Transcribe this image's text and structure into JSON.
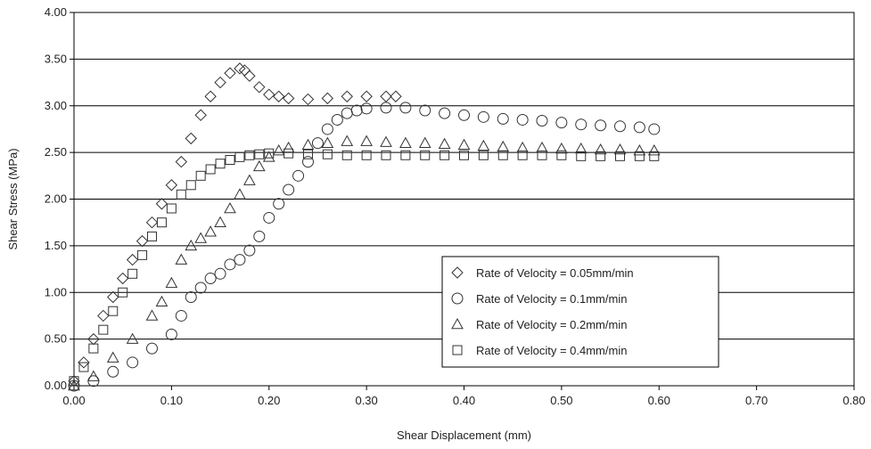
{
  "chart_data": {
    "type": "scatter",
    "title": "",
    "xlabel": "Shear Displacement (mm)",
    "ylabel": "Shear Stress (MPa)",
    "xlim": [
      0.0,
      0.8
    ],
    "ylim": [
      0.0,
      4.0
    ],
    "x_ticks": [
      "0.00",
      "0.10",
      "0.20",
      "0.30",
      "0.40",
      "0.50",
      "0.60",
      "0.70",
      "0.80"
    ],
    "y_ticks": [
      "0.00",
      "0.50",
      "1.00",
      "1.50",
      "2.00",
      "2.50",
      "3.00",
      "3.50",
      "4.00"
    ],
    "grid": "horizontal",
    "legend_position": "lower-right-center",
    "series": [
      {
        "name": "Rate of Velocity  = 0.05mm/min",
        "marker": "diamond",
        "x": [
          0.0,
          0.01,
          0.02,
          0.03,
          0.04,
          0.05,
          0.06,
          0.07,
          0.08,
          0.09,
          0.1,
          0.11,
          0.12,
          0.13,
          0.14,
          0.15,
          0.16,
          0.17,
          0.175,
          0.18,
          0.19,
          0.2,
          0.21,
          0.22,
          0.24,
          0.26,
          0.28,
          0.3,
          0.32,
          0.33
        ],
        "y": [
          0.05,
          0.25,
          0.5,
          0.75,
          0.95,
          1.15,
          1.35,
          1.55,
          1.75,
          1.95,
          2.15,
          2.4,
          2.65,
          2.9,
          3.1,
          3.25,
          3.35,
          3.4,
          3.38,
          3.32,
          3.2,
          3.12,
          3.1,
          3.08,
          3.07,
          3.08,
          3.1,
          3.1,
          3.1,
          3.1
        ]
      },
      {
        "name": "Rate of Velocity  = 0.1mm/min",
        "marker": "circle",
        "x": [
          0.0,
          0.02,
          0.04,
          0.06,
          0.08,
          0.1,
          0.11,
          0.12,
          0.13,
          0.14,
          0.15,
          0.16,
          0.17,
          0.18,
          0.19,
          0.2,
          0.21,
          0.22,
          0.23,
          0.24,
          0.25,
          0.26,
          0.27,
          0.28,
          0.29,
          0.3,
          0.32,
          0.34,
          0.36,
          0.38,
          0.4,
          0.42,
          0.44,
          0.46,
          0.48,
          0.5,
          0.52,
          0.54,
          0.56,
          0.58,
          0.595
        ],
        "y": [
          0.0,
          0.05,
          0.15,
          0.25,
          0.4,
          0.55,
          0.75,
          0.95,
          1.05,
          1.15,
          1.2,
          1.3,
          1.35,
          1.45,
          1.6,
          1.8,
          1.95,
          2.1,
          2.25,
          2.4,
          2.6,
          2.75,
          2.85,
          2.92,
          2.95,
          2.97,
          2.98,
          2.98,
          2.95,
          2.92,
          2.9,
          2.88,
          2.86,
          2.85,
          2.84,
          2.82,
          2.8,
          2.79,
          2.78,
          2.77,
          2.75
        ]
      },
      {
        "name": "Rate of Velocity  = 0.2mm/min",
        "marker": "triangle",
        "x": [
          0.0,
          0.02,
          0.04,
          0.06,
          0.08,
          0.09,
          0.1,
          0.11,
          0.12,
          0.13,
          0.14,
          0.15,
          0.16,
          0.17,
          0.18,
          0.19,
          0.2,
          0.21,
          0.22,
          0.24,
          0.26,
          0.28,
          0.3,
          0.32,
          0.34,
          0.36,
          0.38,
          0.4,
          0.42,
          0.44,
          0.46,
          0.48,
          0.5,
          0.52,
          0.54,
          0.56,
          0.58,
          0.595
        ],
        "y": [
          0.0,
          0.1,
          0.3,
          0.5,
          0.75,
          0.9,
          1.1,
          1.35,
          1.5,
          1.58,
          1.65,
          1.75,
          1.9,
          2.05,
          2.2,
          2.35,
          2.45,
          2.52,
          2.55,
          2.58,
          2.6,
          2.62,
          2.62,
          2.61,
          2.6,
          2.6,
          2.59,
          2.58,
          2.57,
          2.56,
          2.55,
          2.55,
          2.54,
          2.54,
          2.53,
          2.53,
          2.52,
          2.52
        ]
      },
      {
        "name": "Rate of Velocity  = 0.4mm/min",
        "marker": "square",
        "x": [
          0.0,
          0.01,
          0.02,
          0.03,
          0.04,
          0.05,
          0.06,
          0.07,
          0.08,
          0.09,
          0.1,
          0.11,
          0.12,
          0.13,
          0.14,
          0.15,
          0.16,
          0.17,
          0.18,
          0.19,
          0.2,
          0.22,
          0.24,
          0.26,
          0.28,
          0.3,
          0.32,
          0.34,
          0.36,
          0.38,
          0.4,
          0.42,
          0.44,
          0.46,
          0.48,
          0.5,
          0.52,
          0.54,
          0.56,
          0.58,
          0.595
        ],
        "y": [
          0.05,
          0.2,
          0.4,
          0.6,
          0.8,
          1.0,
          1.2,
          1.4,
          1.6,
          1.75,
          1.9,
          2.05,
          2.15,
          2.25,
          2.32,
          2.38,
          2.42,
          2.45,
          2.47,
          2.48,
          2.49,
          2.49,
          2.48,
          2.48,
          2.47,
          2.47,
          2.47,
          2.47,
          2.47,
          2.47,
          2.47,
          2.47,
          2.47,
          2.47,
          2.47,
          2.47,
          2.46,
          2.46,
          2.46,
          2.46,
          2.46
        ]
      }
    ]
  }
}
